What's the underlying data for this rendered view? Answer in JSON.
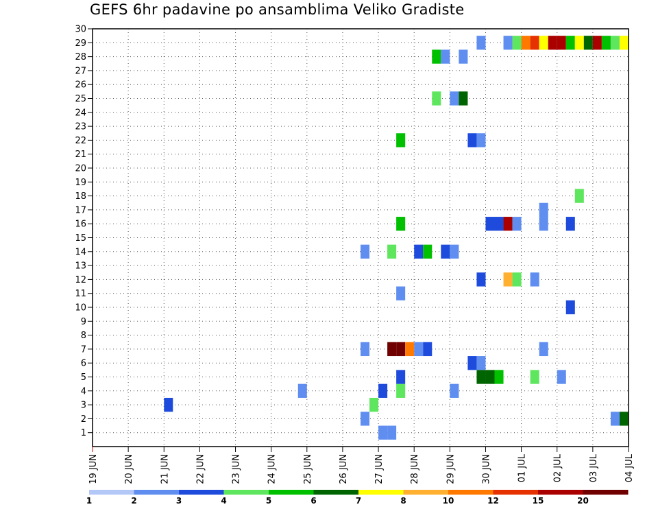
{
  "chart_data": {
    "type": "heatmap",
    "title": "GEFS 6hr padavine po ansamblima Veliko Gradiste",
    "xlabel": "",
    "ylabel": "",
    "x_tick_labels": [
      "19 JUN",
      "20 JUN",
      "21 JUN",
      "22 JUN",
      "23 JUN",
      "24 JUN",
      "25 JUN",
      "26 JUN",
      "27 JUN",
      "28 JUN",
      "29 JUN",
      "30 JUN",
      "01 JUL",
      "02 JUL",
      "03 JUL",
      "04 JUL"
    ],
    "x_range_days": [
      0,
      15
    ],
    "x_step_days": 0.25,
    "y_tick_labels": [
      "1",
      "2",
      "3",
      "4",
      "5",
      "6",
      "7",
      "8",
      "9",
      "10",
      "11",
      "12",
      "13",
      "14",
      "15",
      "16",
      "17",
      "18",
      "19",
      "20",
      "21",
      "22",
      "23",
      "24",
      "25",
      "26",
      "27",
      "28",
      "29",
      "30"
    ],
    "y_range": [
      0,
      30
    ],
    "grid": true,
    "colorbar": {
      "labels": [
        "1",
        "2",
        "3",
        "4",
        "5",
        "6",
        "7",
        "8",
        "10",
        "12",
        "15",
        "20"
      ],
      "colors": [
        "#b4c8f8",
        "#5f8ef0",
        "#1e4bdc",
        "#5fe65f",
        "#00c000",
        "#006400",
        "#ffff00",
        "#ffb030",
        "#ff7800",
        "#e63200",
        "#aa0000",
        "#700000"
      ]
    },
    "cells": [
      {
        "member": 2,
        "x": 14.75,
        "bin": 1
      },
      {
        "member": 2,
        "x": 15.0,
        "bin": 5
      },
      {
        "member": 3,
        "x": 2.25,
        "bin": 2
      },
      {
        "member": 3,
        "x": 8.0,
        "bin": 3
      },
      {
        "member": 4,
        "x": 6.0,
        "bin": 1
      },
      {
        "member": 4,
        "x": 8.25,
        "bin": 2
      },
      {
        "member": 4,
        "x": 8.75,
        "bin": 3
      },
      {
        "member": 4,
        "x": 10.25,
        "bin": 1
      },
      {
        "member": 5,
        "x": 8.75,
        "bin": 2
      },
      {
        "member": 5,
        "x": 11.0,
        "bin": 5
      },
      {
        "member": 5,
        "x": 11.25,
        "bin": 5
      },
      {
        "member": 5,
        "x": 11.5,
        "bin": 4
      },
      {
        "member": 5,
        "x": 12.5,
        "bin": 3
      },
      {
        "member": 5,
        "x": 13.25,
        "bin": 1
      },
      {
        "member": 6,
        "x": 10.75,
        "bin": 2
      },
      {
        "member": 6,
        "x": 11.0,
        "bin": 1
      },
      {
        "member": 2,
        "x": 7.75,
        "bin": 1
      },
      {
        "member": 1,
        "x": 8.25,
        "bin": 1
      },
      {
        "member": 1,
        "x": 8.5,
        "bin": 1
      },
      {
        "member": 7,
        "x": 7.75,
        "bin": 1
      },
      {
        "member": 7,
        "x": 8.5,
        "bin": 11
      },
      {
        "member": 7,
        "x": 8.75,
        "bin": 11
      },
      {
        "member": 7,
        "x": 9.0,
        "bin": 8
      },
      {
        "member": 7,
        "x": 9.25,
        "bin": 1
      },
      {
        "member": 7,
        "x": 9.5,
        "bin": 2
      },
      {
        "member": 7,
        "x": 12.75,
        "bin": 1
      },
      {
        "member": 10,
        "x": 13.5,
        "bin": 2
      },
      {
        "member": 11,
        "x": 8.75,
        "bin": 1
      },
      {
        "member": 12,
        "x": 11.0,
        "bin": 2
      },
      {
        "member": 12,
        "x": 11.75,
        "bin": 7
      },
      {
        "member": 12,
        "x": 12.0,
        "bin": 3
      },
      {
        "member": 12,
        "x": 12.5,
        "bin": 1
      },
      {
        "member": 14,
        "x": 7.75,
        "bin": 1
      },
      {
        "member": 14,
        "x": 8.5,
        "bin": 3
      },
      {
        "member": 14,
        "x": 9.25,
        "bin": 2
      },
      {
        "member": 14,
        "x": 9.5,
        "bin": 4
      },
      {
        "member": 14,
        "x": 10.0,
        "bin": 2
      },
      {
        "member": 14,
        "x": 10.25,
        "bin": 1
      },
      {
        "member": 16,
        "x": 8.75,
        "bin": 4
      },
      {
        "member": 16,
        "x": 11.25,
        "bin": 2
      },
      {
        "member": 16,
        "x": 11.5,
        "bin": 2
      },
      {
        "member": 16,
        "x": 11.75,
        "bin": 10
      },
      {
        "member": 16,
        "x": 12.0,
        "bin": 1
      },
      {
        "member": 16,
        "x": 12.75,
        "bin": 1
      },
      {
        "member": 17,
        "x": 12.75,
        "bin": 1
      },
      {
        "member": 16,
        "x": 13.5,
        "bin": 2
      },
      {
        "member": 18,
        "x": 13.75,
        "bin": 3
      },
      {
        "member": 22,
        "x": 8.75,
        "bin": 4
      },
      {
        "member": 22,
        "x": 10.75,
        "bin": 2
      },
      {
        "member": 22,
        "x": 11.0,
        "bin": 1
      },
      {
        "member": 25,
        "x": 9.75,
        "bin": 3
      },
      {
        "member": 25,
        "x": 10.25,
        "bin": 1
      },
      {
        "member": 25,
        "x": 10.5,
        "bin": 5
      },
      {
        "member": 28,
        "x": 9.75,
        "bin": 4
      },
      {
        "member": 28,
        "x": 10.0,
        "bin": 1
      },
      {
        "member": 28,
        "x": 10.5,
        "bin": 1
      },
      {
        "member": 29,
        "x": 11.0,
        "bin": 1
      },
      {
        "member": 29,
        "x": 11.75,
        "bin": 1
      },
      {
        "member": 29,
        "x": 12.0,
        "bin": 3
      },
      {
        "member": 29,
        "x": 12.25,
        "bin": 8
      },
      {
        "member": 29,
        "x": 12.5,
        "bin": 9
      },
      {
        "member": 29,
        "x": 12.75,
        "bin": 6
      },
      {
        "member": 29,
        "x": 13.0,
        "bin": 10
      },
      {
        "member": 29,
        "x": 13.25,
        "bin": 10
      },
      {
        "member": 29,
        "x": 13.5,
        "bin": 4
      },
      {
        "member": 29,
        "x": 13.75,
        "bin": 6
      },
      {
        "member": 29,
        "x": 14.0,
        "bin": 5
      },
      {
        "member": 29,
        "x": 14.25,
        "bin": 10
      },
      {
        "member": 29,
        "x": 14.5,
        "bin": 4
      },
      {
        "member": 29,
        "x": 14.75,
        "bin": 3
      },
      {
        "member": 29,
        "x": 15.0,
        "bin": 6
      }
    ]
  }
}
